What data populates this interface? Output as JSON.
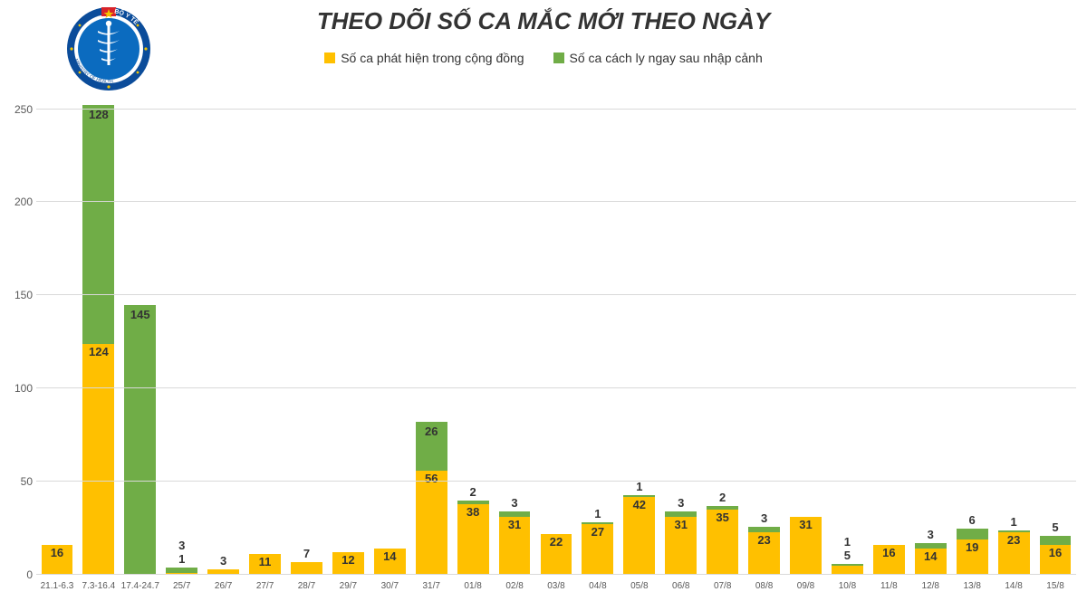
{
  "chart": {
    "type": "stacked-bar",
    "title": "THEO DÕI SỐ CA MẮC MỚI THEO NGÀY",
    "title_fontsize": 26,
    "legend": {
      "fontsize": 14,
      "items": [
        {
          "label": "Số ca phát hiện trong cộng đồng",
          "color": "#ffc000"
        },
        {
          "label": "Số ca cách ly ngay sau nhập cảnh",
          "color": "#70ad47"
        }
      ]
    },
    "yaxis": {
      "min": 0,
      "max": 260,
      "ticks": [
        0,
        50,
        100,
        150,
        200,
        250
      ],
      "grid_color": "#d9d9d9",
      "tick_fontsize": 12
    },
    "xaxis": {
      "tick_fontsize": 10
    },
    "label_fontsize": 13,
    "colors": {
      "community": "#ffc000",
      "quarantine": "#70ad47"
    },
    "categories": [
      "21.1-6.3",
      "7.3-16.4",
      "17.4-24.7",
      "25/7",
      "26/7",
      "27/7",
      "28/7",
      "29/7",
      "30/7",
      "31/7",
      "01/8",
      "02/8",
      "03/8",
      "04/8",
      "05/8",
      "06/8",
      "07/8",
      "08/8",
      "09/8",
      "10/8",
      "11/8",
      "12/8",
      "13/8",
      "14/8",
      "15/8"
    ],
    "series": {
      "community": [
        16,
        124,
        0,
        1,
        3,
        11,
        7,
        12,
        14,
        56,
        38,
        31,
        22,
        27,
        42,
        31,
        35,
        23,
        31,
        5,
        16,
        14,
        19,
        23,
        16
      ],
      "quarantine": [
        0,
        128,
        145,
        3,
        0,
        0,
        0,
        0,
        0,
        26,
        2,
        3,
        0,
        1,
        1,
        3,
        2,
        3,
        0,
        1,
        0,
        3,
        6,
        1,
        5
      ]
    },
    "data_labels": {
      "bottom": [
        "16",
        "124",
        null,
        "1",
        "3",
        "11",
        "7",
        "12",
        "14",
        "56",
        "38",
        "31",
        "22",
        "27",
        "42",
        "31",
        "35",
        "23",
        "31",
        "5",
        "16",
        "14",
        "19",
        "23",
        "16"
      ],
      "top": [
        null,
        "128",
        "145",
        "3",
        null,
        null,
        null,
        null,
        null,
        "26",
        "2",
        "3",
        null,
        "1",
        "1",
        "3",
        "2",
        "3",
        null,
        "1",
        null,
        "3",
        "6",
        "1",
        "5"
      ]
    },
    "background_color": "#ffffff"
  },
  "logo": {
    "outer_text_top": "BỘ Y TẾ",
    "outer_text_bottom": "MINISTRY OF HEALTH",
    "ring_color": "#0b4c9a",
    "inner_color": "#0b6bbf",
    "star_color": "#f2c400",
    "flag_color": "#d8232a"
  }
}
